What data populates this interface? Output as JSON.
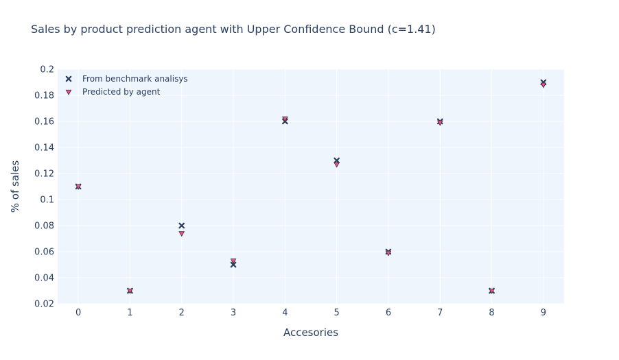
{
  "chart_data": {
    "type": "scatter",
    "title": "Sales by product prediction agent with Upper Confidence Bound (c=1.41)",
    "xlabel": "Accesories",
    "ylabel": "% of sales",
    "x": [
      0,
      1,
      2,
      3,
      4,
      5,
      6,
      7,
      8,
      9
    ],
    "x_ticks": [
      "0",
      "1",
      "2",
      "3",
      "4",
      "5",
      "6",
      "7",
      "8",
      "9"
    ],
    "y_ticks": [
      "0.02",
      "0.04",
      "0.06",
      "0.08",
      "0.1",
      "0.12",
      "0.14",
      "0.16",
      "0.18",
      "0.2"
    ],
    "xlim": [
      -0.4,
      9.4
    ],
    "ylim": [
      0.02,
      0.2
    ],
    "grid": true,
    "legend_position": "top-left",
    "series": [
      {
        "name": "From benchmark analisys",
        "marker": "x",
        "color": "#2a3f5f",
        "values": [
          0.11,
          0.03,
          0.08,
          0.05,
          0.16,
          0.13,
          0.06,
          0.16,
          0.03,
          0.19
        ]
      },
      {
        "name": "Predicted by agent",
        "marker": "triangle-down",
        "color": "#e8578f",
        "values": [
          0.11,
          0.03,
          0.074,
          0.053,
          0.162,
          0.127,
          0.059,
          0.159,
          0.03,
          0.188
        ]
      }
    ],
    "plot_background": "#eef5fd"
  }
}
